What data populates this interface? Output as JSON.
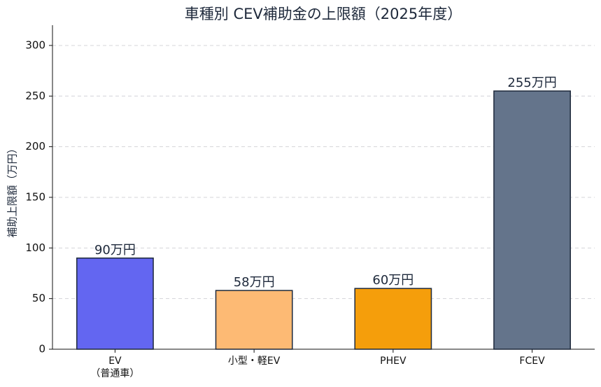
{
  "chart_data": {
    "type": "bar",
    "title": "車種別 CEV補助金の上限額（2025年度）",
    "y_label": "補助上限額（万円）",
    "categories": [
      "EV\n（普通車）",
      "小型・軽EV",
      "PHEV",
      "FCEV"
    ],
    "values": [
      90,
      58,
      60,
      255
    ],
    "value_labels": [
      "90万円",
      "58万円",
      "60万円",
      "255万円"
    ],
    "colors": [
      "#6366f1",
      "#fdba74",
      "#f59e0b",
      "#64748b"
    ],
    "ylim": [
      0,
      320
    ],
    "yticks": [
      0,
      50,
      100,
      150,
      200,
      250,
      300
    ],
    "grid": true
  }
}
